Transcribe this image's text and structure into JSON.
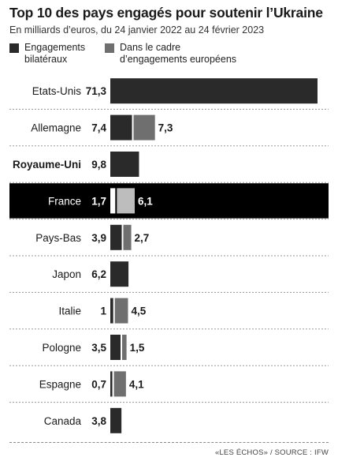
{
  "header": {
    "title": "Top 10 des pays engagés pour soutenir l’Ukraine",
    "subtitle": "En milliards d’euros, du 24 janvier 2022 au 24 février 2023"
  },
  "legend": {
    "bilateral": "Engagements\nbilatéraux",
    "european": "Dans le cadre\nd’engagements européens"
  },
  "colors": {
    "bilateral": "#2a2a2a",
    "european": "#6f6f6f",
    "highlight_row": "#000000",
    "highlight_european": "#bdbdbd"
  },
  "footer": {
    "source": "«LES ÉCHOS» / SOURCE : IFW"
  },
  "chart_data": {
    "type": "bar",
    "orientation": "horizontal",
    "stacked": true,
    "title": "Top 10 des pays engagés pour soutenir l’Ukraine",
    "subtitle": "En milliards d’euros, du 24 janvier 2022 au 24 février 2023",
    "categories": [
      "Etats-Unis",
      "Allemagne",
      "Royaume-Uni",
      "France",
      "Pays-Bas",
      "Japon",
      "Italie",
      "Pologne",
      "Espagne",
      "Canada"
    ],
    "bilateral_labels": [
      "71,3",
      "7,4",
      "9,8",
      "1,7",
      "3,9",
      "6,2",
      "1",
      "3,5",
      "0,7",
      "3,8"
    ],
    "european_labels": [
      "",
      "7,3",
      "",
      "6,1",
      "2,7",
      "",
      "4,5",
      "1,5",
      "4,1",
      ""
    ],
    "series": [
      {
        "name": "Engagements bilatéraux",
        "values": [
          71.3,
          7.4,
          9.8,
          1.7,
          3.9,
          6.2,
          1.0,
          3.5,
          0.7,
          3.8
        ]
      },
      {
        "name": "Dans le cadre d’engagements européens",
        "values": [
          0,
          7.3,
          0,
          6.1,
          2.7,
          0,
          4.5,
          1.5,
          4.1,
          0
        ]
      }
    ],
    "bold_category": "Royaume-Uni",
    "highlight_category": "France",
    "legend_position": "top-left"
  }
}
